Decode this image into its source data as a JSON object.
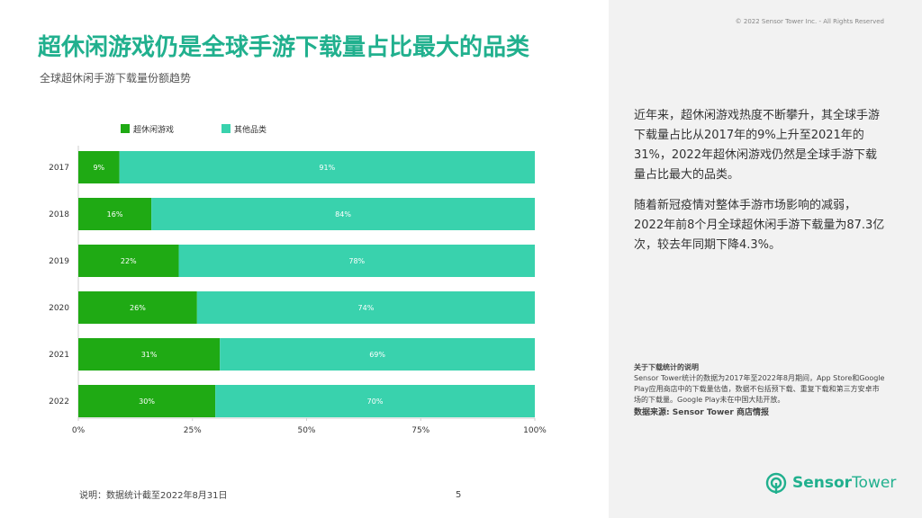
{
  "copyright": "© 2022 Sensor Tower Inc. - All Rights Reserved",
  "title": "超休闲游戏仍是全球手游下载量占比最大的品类",
  "subtitle": "全球超休闲手游下载量份额趋势",
  "paragraph1": "近年来，超休闲游戏热度不断攀升，其全球手游下载量占比从2017年的9%上升至2021年的31%，2022年超休闲游戏仍然是全球手游下载量占比最大的品类。",
  "paragraph2": "随着新冠疫情对整体手游市场影响的减弱，2022年前8个月全球超休闲手游下载量为87.3亿次，较去年同期下降4.3%。",
  "note_title": "关于下载统计的说明",
  "note_body": "Sensor Tower统计的数据为2017年至2022年8月期间，App Store和Google Play应用商店中的下载量估值，数据不包括预下载、重复下载和第三方安卓市场的下载量。Google Play未在中国大陆开放。",
  "source": "数据来源: Sensor Tower 商店情报",
  "footnote": "说明：数据统计截至2022年8月31日",
  "page_number": "5",
  "logo": {
    "bold": "Sensor",
    "light": "Tower"
  },
  "colors": {
    "accent": "#21b08e",
    "hyper_casual": "#1faa14",
    "other": "#39d2ad"
  },
  "chart_data": {
    "type": "bar",
    "orientation": "horizontal",
    "stacked": true,
    "categories": [
      "2017",
      "2018",
      "2019",
      "2020",
      "2021",
      "2022"
    ],
    "series": [
      {
        "name": "超休闲游戏",
        "values": [
          9,
          16,
          22,
          26,
          31,
          30
        ],
        "labels": [
          "9%",
          "16%",
          "22%",
          "26%",
          "31%",
          "30%"
        ]
      },
      {
        "name": "其他品类",
        "values": [
          91,
          84,
          78,
          74,
          69,
          70
        ],
        "labels": [
          "91%",
          "84%",
          "78%",
          "74%",
          "69%",
          "70%"
        ]
      }
    ],
    "xlim": [
      0,
      100
    ],
    "xticks": [
      "0%",
      "25%",
      "50%",
      "75%",
      "100%"
    ],
    "legend_position": "top-left",
    "grid": false
  }
}
